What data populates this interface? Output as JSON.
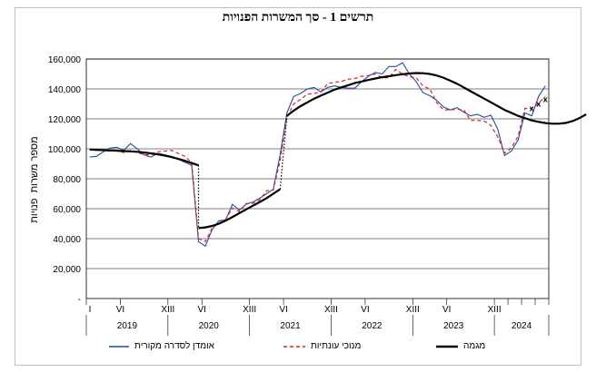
{
  "chart_data": {
    "type": "line",
    "title": "תרשים 1 - סך המשרות הפנויות",
    "ylabel": "מספר משרות  פנויות",
    "ylim": [
      0,
      160000
    ],
    "yticks": [
      "-",
      "20,000",
      "40,000",
      "60,000",
      "80,000",
      "100,000",
      "120,000",
      "140,000",
      "160,000"
    ],
    "month_ticks": [
      "I",
      "VI",
      "XIII",
      "VI",
      "XIII",
      "VI",
      "XIII",
      "VI",
      "XIII",
      "VI",
      "XIII"
    ],
    "years": [
      "2019",
      "2020",
      "2021",
      "2022",
      "2023",
      "2024"
    ],
    "x_start": "2019-01",
    "grid": true,
    "legend_position": "bottom",
    "series": [
      {
        "name": "אומדן לסדרה מקורית",
        "color": "#1f4e9e",
        "style": "solid",
        "values": [
          94500,
          95000,
          98000,
          100500,
          101000,
          99000,
          103500,
          100000,
          96000,
          94500,
          97000,
          96000,
          95000,
          93000,
          91000,
          89000,
          38000,
          35000,
          46000,
          52000,
          52500,
          63000,
          59000,
          63000,
          64500,
          67000,
          70000,
          73000,
          96000,
          124000,
          135000,
          137000,
          140000,
          141000,
          138000,
          141000,
          142000,
          141000,
          140500,
          140500,
          145000,
          148500,
          151000,
          150000,
          155000,
          155000,
          157500,
          150000,
          145000,
          137500,
          135500,
          132500,
          128000,
          126000,
          127500,
          124500,
          122000,
          123000,
          121000,
          122500,
          113000,
          95500,
          98500,
          106000,
          124000,
          122000,
          135000,
          142000
        ]
      },
      {
        "name": "מנוכי עונתיות",
        "color": "#e02020",
        "style": "dashed",
        "values": [
          100000,
          99000,
          99000,
          98500,
          99000,
          97500,
          99000,
          97500,
          96000,
          96000,
          98000,
          98500,
          99000,
          97000,
          95000,
          91000,
          40000,
          38000,
          47000,
          50500,
          53000,
          60500,
          58000,
          63500,
          63500,
          66000,
          72000,
          72500,
          92000,
          121000,
          130000,
          133000,
          136500,
          137000,
          138000,
          143500,
          144500,
          145000,
          146500,
          147000,
          148500,
          149000,
          150000,
          147500,
          147500,
          153000,
          150000,
          148000,
          147500,
          142000,
          140000,
          131000,
          126000,
          126000,
          126500,
          126000,
          119000,
          119000,
          118500,
          115500,
          108000,
          97000,
          100500,
          108500,
          127000,
          127000,
          130500,
          135000
        ]
      },
      {
        "name": "מגמה",
        "color": "#000000",
        "style": "solid-thick",
        "segments": [
          {
            "start": 0,
            "values": [
              99500,
              99300,
              99100,
              98900,
              98700,
              98500,
              98300,
              98000,
              97500,
              97000,
              96300,
              95500,
              94500,
              93300,
              92000,
              90500,
              89000
            ]
          },
          {
            "start": 16,
            "values": [
              47000,
              47500,
              48500,
              50000,
              52000,
              54500,
              57000,
              59500,
              62000,
              64500,
              67000,
              70000,
              73000
            ]
          },
          {
            "start": 29,
            "values": [
              122000,
              125500,
              128500,
              131000,
              133500,
              135500,
              137500,
              139500,
              141000,
              142500,
              144000,
              145000,
              146000,
              147000,
              147800,
              148500,
              149200,
              149800,
              150300,
              150600,
              150500,
              150000,
              149000,
              147500,
              145500,
              143500,
              141000,
              138500,
              136000,
              133500,
              131000,
              128500,
              126000,
              124000,
              122000,
              120500,
              119000,
              118000,
              117200,
              116800,
              116800,
              117300,
              118500,
              120500,
              123000
            ]
          }
        ],
        "extra_points": [
          {
            "x": 65,
            "y": 127000,
            "label": "x"
          },
          {
            "x": 66,
            "y": 130000,
            "label": "x"
          },
          {
            "x": 67,
            "y": 133000,
            "label": "x"
          }
        ]
      }
    ]
  }
}
